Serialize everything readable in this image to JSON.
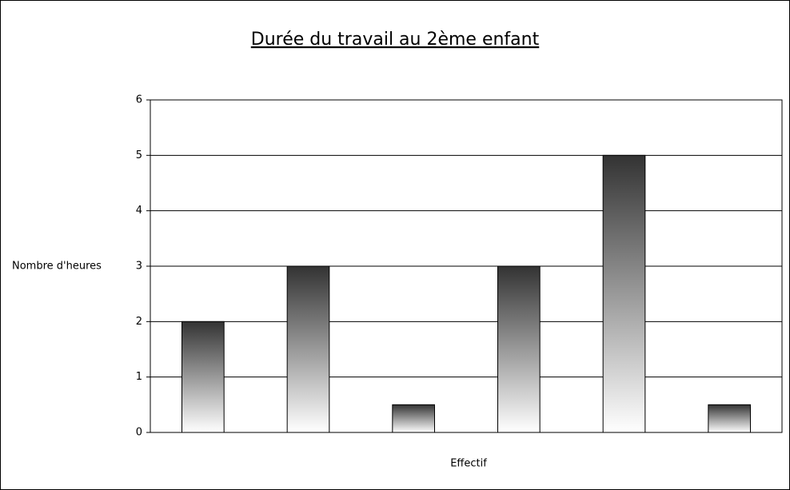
{
  "chart_data": {
    "type": "bar",
    "title": "Durée du travail au 2ème enfant",
    "x_label": "Effectif",
    "y_label": "Nombre d'heures",
    "categories": [
      null,
      null,
      null,
      null,
      null,
      null
    ],
    "values": [
      2,
      3,
      0.5,
      3,
      5,
      0.5
    ],
    "color": "#333333",
    "ylim": [
      0,
      6
    ],
    "yticks": [
      0,
      1,
      2,
      3,
      4,
      5,
      6
    ],
    "grid": true
  }
}
